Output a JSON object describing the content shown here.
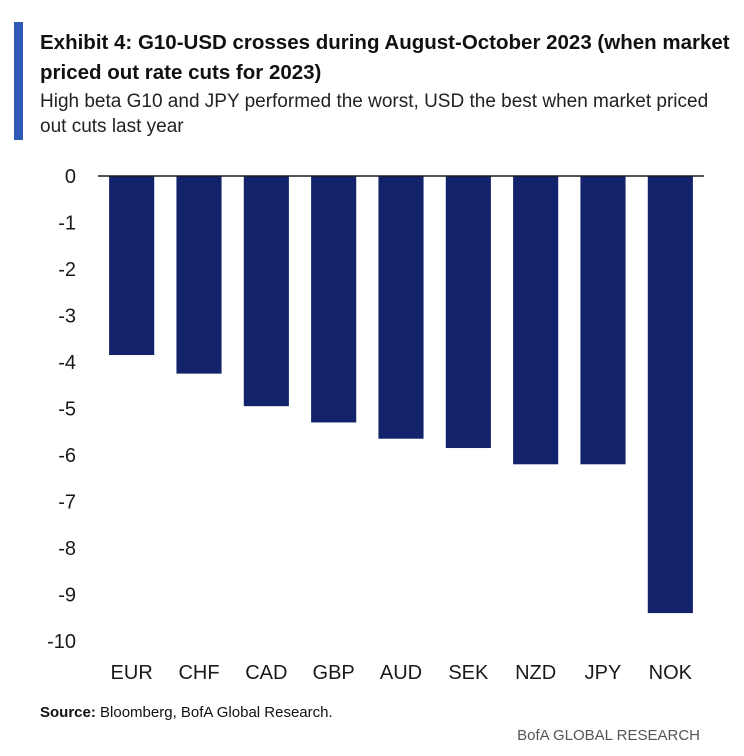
{
  "title": "Exhibit 4: G10-USD crosses during August-October 2023 (when market priced out rate cuts for 2023)",
  "subtitle": "High beta G10 and JPY performed the worst, USD the best when market priced out cuts last year",
  "source_label": "Source:",
  "source_text": " Bloomberg, BofA Global Research.",
  "brand": "BofA GLOBAL RESEARCH",
  "colors": {
    "accent": "#2f5bb7",
    "bar": "#13236b",
    "axis": "#1a1a1a"
  },
  "chart_data": {
    "type": "bar",
    "title": "Exhibit 4: G10-USD crosses during August-October 2023 (when market priced out rate cuts for 2023)",
    "xlabel": "",
    "ylabel": "",
    "categories": [
      "EUR",
      "CHF",
      "CAD",
      "GBP",
      "AUD",
      "SEK",
      "NZD",
      "JPY",
      "NOK"
    ],
    "values": [
      -3.85,
      -4.25,
      -4.95,
      -5.3,
      -5.65,
      -5.85,
      -6.2,
      -6.2,
      -9.4
    ],
    "ylim": [
      -10,
      0
    ],
    "yticks": [
      0,
      -1,
      -2,
      -3,
      -4,
      -5,
      -6,
      -7,
      -8,
      -9,
      -10
    ],
    "grid": false,
    "legend": "none"
  }
}
